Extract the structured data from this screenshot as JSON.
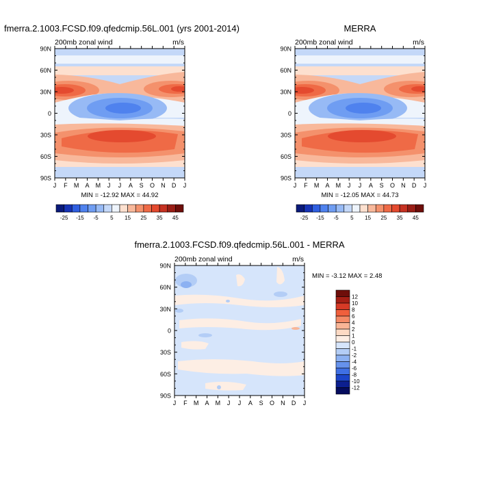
{
  "chart_data": [
    {
      "type": "heatmap",
      "title": "fmerra.2.1003.FCSD.f09.qfedcmip.56L.001 (yrs 2001-2014)",
      "left_label": "200mb zonal wind",
      "right_label": "m/s",
      "x_ticks": [
        "J",
        "F",
        "M",
        "A",
        "M",
        "J",
        "J",
        "A",
        "S",
        "O",
        "N",
        "D",
        "J"
      ],
      "y_ticks": [
        "90N",
        "60N",
        "30N",
        "0",
        "30S",
        "60S",
        "90S"
      ],
      "stats": "MIN = -12.92 MAX =  44.92",
      "colorbar_labels": [
        "-25",
        "-15",
        "-5",
        "5",
        "15",
        "25",
        "35",
        "45"
      ],
      "min": -12.92,
      "max": 44.92
    },
    {
      "type": "heatmap",
      "title": "MERRA",
      "left_label": "200mb zonal wind",
      "right_label": "m/s",
      "x_ticks": [
        "J",
        "F",
        "M",
        "A",
        "M",
        "J",
        "J",
        "A",
        "S",
        "O",
        "N",
        "D",
        "J"
      ],
      "y_ticks": [
        "90N",
        "60N",
        "30N",
        "0",
        "30S",
        "60S",
        "90S"
      ],
      "stats": "MIN = -12.05 MAX =  44.73",
      "colorbar_labels": [
        "-25",
        "-15",
        "-5",
        "5",
        "15",
        "25",
        "35",
        "45"
      ],
      "min": -12.05,
      "max": 44.73
    },
    {
      "type": "heatmap",
      "title": "fmerra.2.1003.FCSD.f09.qfedcmip.56L.001 - MERRA",
      "left_label": "200mb zonal wind",
      "right_label": "m/s",
      "x_ticks": [
        "J",
        "F",
        "M",
        "A",
        "M",
        "J",
        "J",
        "A",
        "S",
        "O",
        "N",
        "D",
        "J"
      ],
      "y_ticks": [
        "90N",
        "60N",
        "30N",
        "0",
        "30S",
        "60S",
        "90S"
      ],
      "stats": "MIN =  -3.12 MAX =   2.48",
      "colorbar_labels": [
        "12",
        "10",
        "8",
        "6",
        "4",
        "2",
        "1",
        "0",
        "-1",
        "-2",
        "-4",
        "-6",
        "-8",
        "-10",
        "-12"
      ],
      "min": -3.12,
      "max": 2.48
    }
  ],
  "colors": {
    "wind_palette": [
      "#0a1a7a",
      "#1633b5",
      "#2f5fe0",
      "#4f82ee",
      "#6f9df2",
      "#97baf5",
      "#c4d8f8",
      "#eef4fc",
      "#fde0cf",
      "#f8b89b",
      "#f4916c",
      "#ef6a46",
      "#e44a2f",
      "#c63222",
      "#9a1e16",
      "#6e0e0a"
    ],
    "diff_palette": [
      "#6e0e0a",
      "#a51f15",
      "#d63a26",
      "#f05f3c",
      "#f48a66",
      "#f9b596",
      "#fddac4",
      "#fdeee4",
      "#d6e5fb",
      "#b3cdf6",
      "#8cb1f2",
      "#6692ec",
      "#3f6fe4",
      "#1c45c9",
      "#0c1f8f",
      "#050c5e"
    ]
  }
}
